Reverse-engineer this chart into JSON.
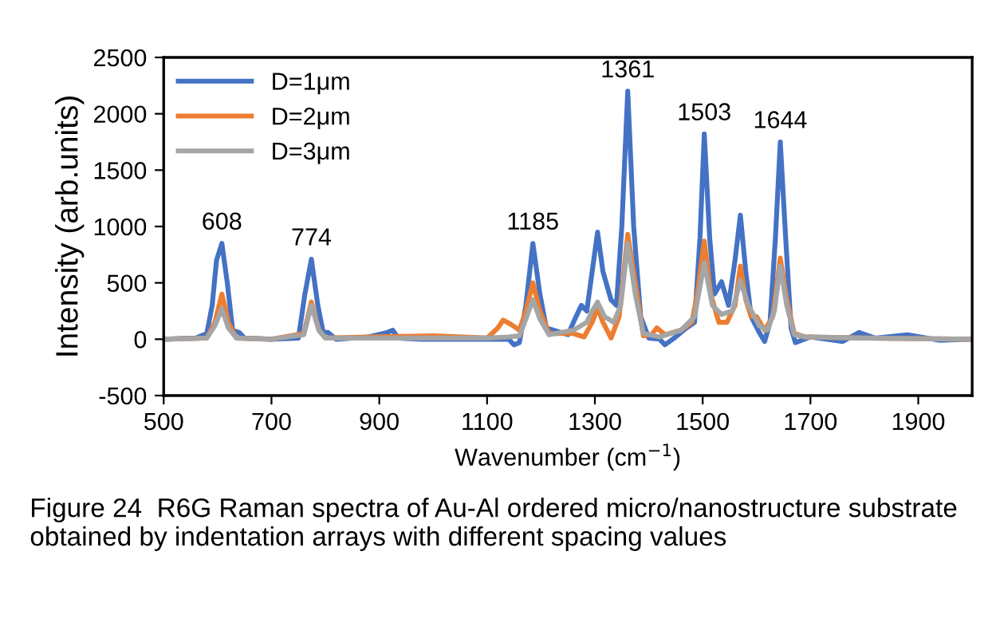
{
  "chart_data": {
    "type": "line",
    "xlabel": "Wavenumber (cm$^{−1}$)",
    "ylabel": "Intensity (arb.units)",
    "xlim": [
      500,
      2000
    ],
    "xticks": [
      500,
      700,
      900,
      1100,
      1300,
      1500,
      1700,
      1900
    ],
    "ylim": [
      -500,
      2500
    ],
    "yticks": [
      -500,
      0,
      500,
      1000,
      1500,
      2000,
      2500
    ],
    "grid": false,
    "legend": "top left",
    "marker": "none",
    "line_style": "solid",
    "series": [
      {
        "name": "D=1μm",
        "color": "#4472c4",
        "x": [
          500,
          560,
          580,
          590,
          598,
          608,
          618,
          628,
          640,
          650,
          700,
          750,
          762,
          774,
          786,
          796,
          805,
          820,
          880,
          915,
          925,
          935,
          980,
          1100,
          1140,
          1150,
          1160,
          1172,
          1185,
          1198,
          1210,
          1250,
          1265,
          1275,
          1285,
          1295,
          1305,
          1315,
          1330,
          1340,
          1350,
          1361,
          1372,
          1385,
          1400,
          1420,
          1430,
          1450,
          1470,
          1485,
          1495,
          1503,
          1513,
          1522,
          1535,
          1548,
          1560,
          1570,
          1580,
          1590,
          1605,
          1615,
          1625,
          1635,
          1644,
          1654,
          1664,
          1672,
          1700,
          1760,
          1790,
          1820,
          1880,
          1940,
          2000
        ],
        "values": [
          0,
          10,
          50,
          300,
          700,
          850,
          500,
          80,
          60,
          10,
          0,
          10,
          400,
          710,
          300,
          60,
          60,
          0,
          20,
          60,
          80,
          10,
          0,
          0,
          0,
          -50,
          -30,
          300,
          850,
          400,
          100,
          40,
          200,
          300,
          250,
          600,
          950,
          600,
          350,
          300,
          1000,
          2200,
          1000,
          200,
          10,
          0,
          -50,
          20,
          100,
          150,
          900,
          1820,
          900,
          400,
          510,
          300,
          700,
          1100,
          600,
          200,
          60,
          -20,
          150,
          900,
          1750,
          900,
          100,
          -30,
          20,
          -20,
          60,
          10,
          40,
          -10,
          0
        ]
      },
      {
        "name": "D=2μm",
        "color": "#ed7d31",
        "x": [
          500,
          580,
          595,
          608,
          620,
          635,
          700,
          760,
          774,
          788,
          800,
          880,
          1000,
          1100,
          1120,
          1130,
          1145,
          1160,
          1172,
          1185,
          1198,
          1215,
          1260,
          1280,
          1295,
          1305,
          1315,
          1330,
          1345,
          1361,
          1375,
          1390,
          1405,
          1415,
          1430,
          1460,
          1480,
          1490,
          1503,
          1515,
          1530,
          1545,
          1560,
          1570,
          1580,
          1590,
          1600,
          1615,
          1630,
          1644,
          1656,
          1670,
          1690,
          1800,
          2000
        ],
        "values": [
          0,
          10,
          150,
          400,
          150,
          10,
          0,
          50,
          330,
          80,
          10,
          20,
          30,
          10,
          100,
          170,
          130,
          80,
          250,
          500,
          250,
          50,
          50,
          20,
          150,
          280,
          150,
          10,
          200,
          930,
          500,
          30,
          40,
          100,
          40,
          80,
          150,
          400,
          870,
          400,
          150,
          150,
          300,
          650,
          350,
          200,
          200,
          80,
          200,
          720,
          350,
          50,
          20,
          10,
          0
        ]
      },
      {
        "name": "D=3μm",
        "color": "#a5a5a5",
        "x": [
          500,
          580,
          595,
          608,
          620,
          635,
          700,
          760,
          774,
          788,
          800,
          1100,
          1140,
          1160,
          1172,
          1185,
          1198,
          1215,
          1260,
          1285,
          1295,
          1305,
          1318,
          1335,
          1348,
          1361,
          1375,
          1390,
          1420,
          1460,
          1485,
          1503,
          1518,
          1535,
          1555,
          1570,
          1585,
          1605,
          1620,
          1633,
          1644,
          1656,
          1670,
          1690,
          1800,
          2000
        ],
        "values": [
          0,
          10,
          120,
          270,
          100,
          10,
          0,
          40,
          300,
          80,
          10,
          10,
          20,
          30,
          180,
          350,
          180,
          40,
          80,
          150,
          250,
          330,
          200,
          150,
          300,
          850,
          400,
          50,
          20,
          80,
          200,
          680,
          300,
          220,
          250,
          520,
          300,
          120,
          80,
          250,
          650,
          300,
          40,
          20,
          10,
          0
        ]
      }
    ],
    "annotations": [
      {
        "text": "608",
        "x": 608,
        "y": 850
      },
      {
        "text": "774",
        "x": 774,
        "y": 710
      },
      {
        "text": "1185",
        "x": 1185,
        "y": 850
      },
      {
        "text": "1361",
        "x": 1361,
        "y": 2200
      },
      {
        "text": "1503",
        "x": 1503,
        "y": 1820
      },
      {
        "text": "1644",
        "x": 1644,
        "y": 1750
      },
      "Figure 24  R6G Raman spectra of Au-Al ordered micro/nanostructure substrate obtained by indentation arrays with different spacing values"
    ]
  }
}
